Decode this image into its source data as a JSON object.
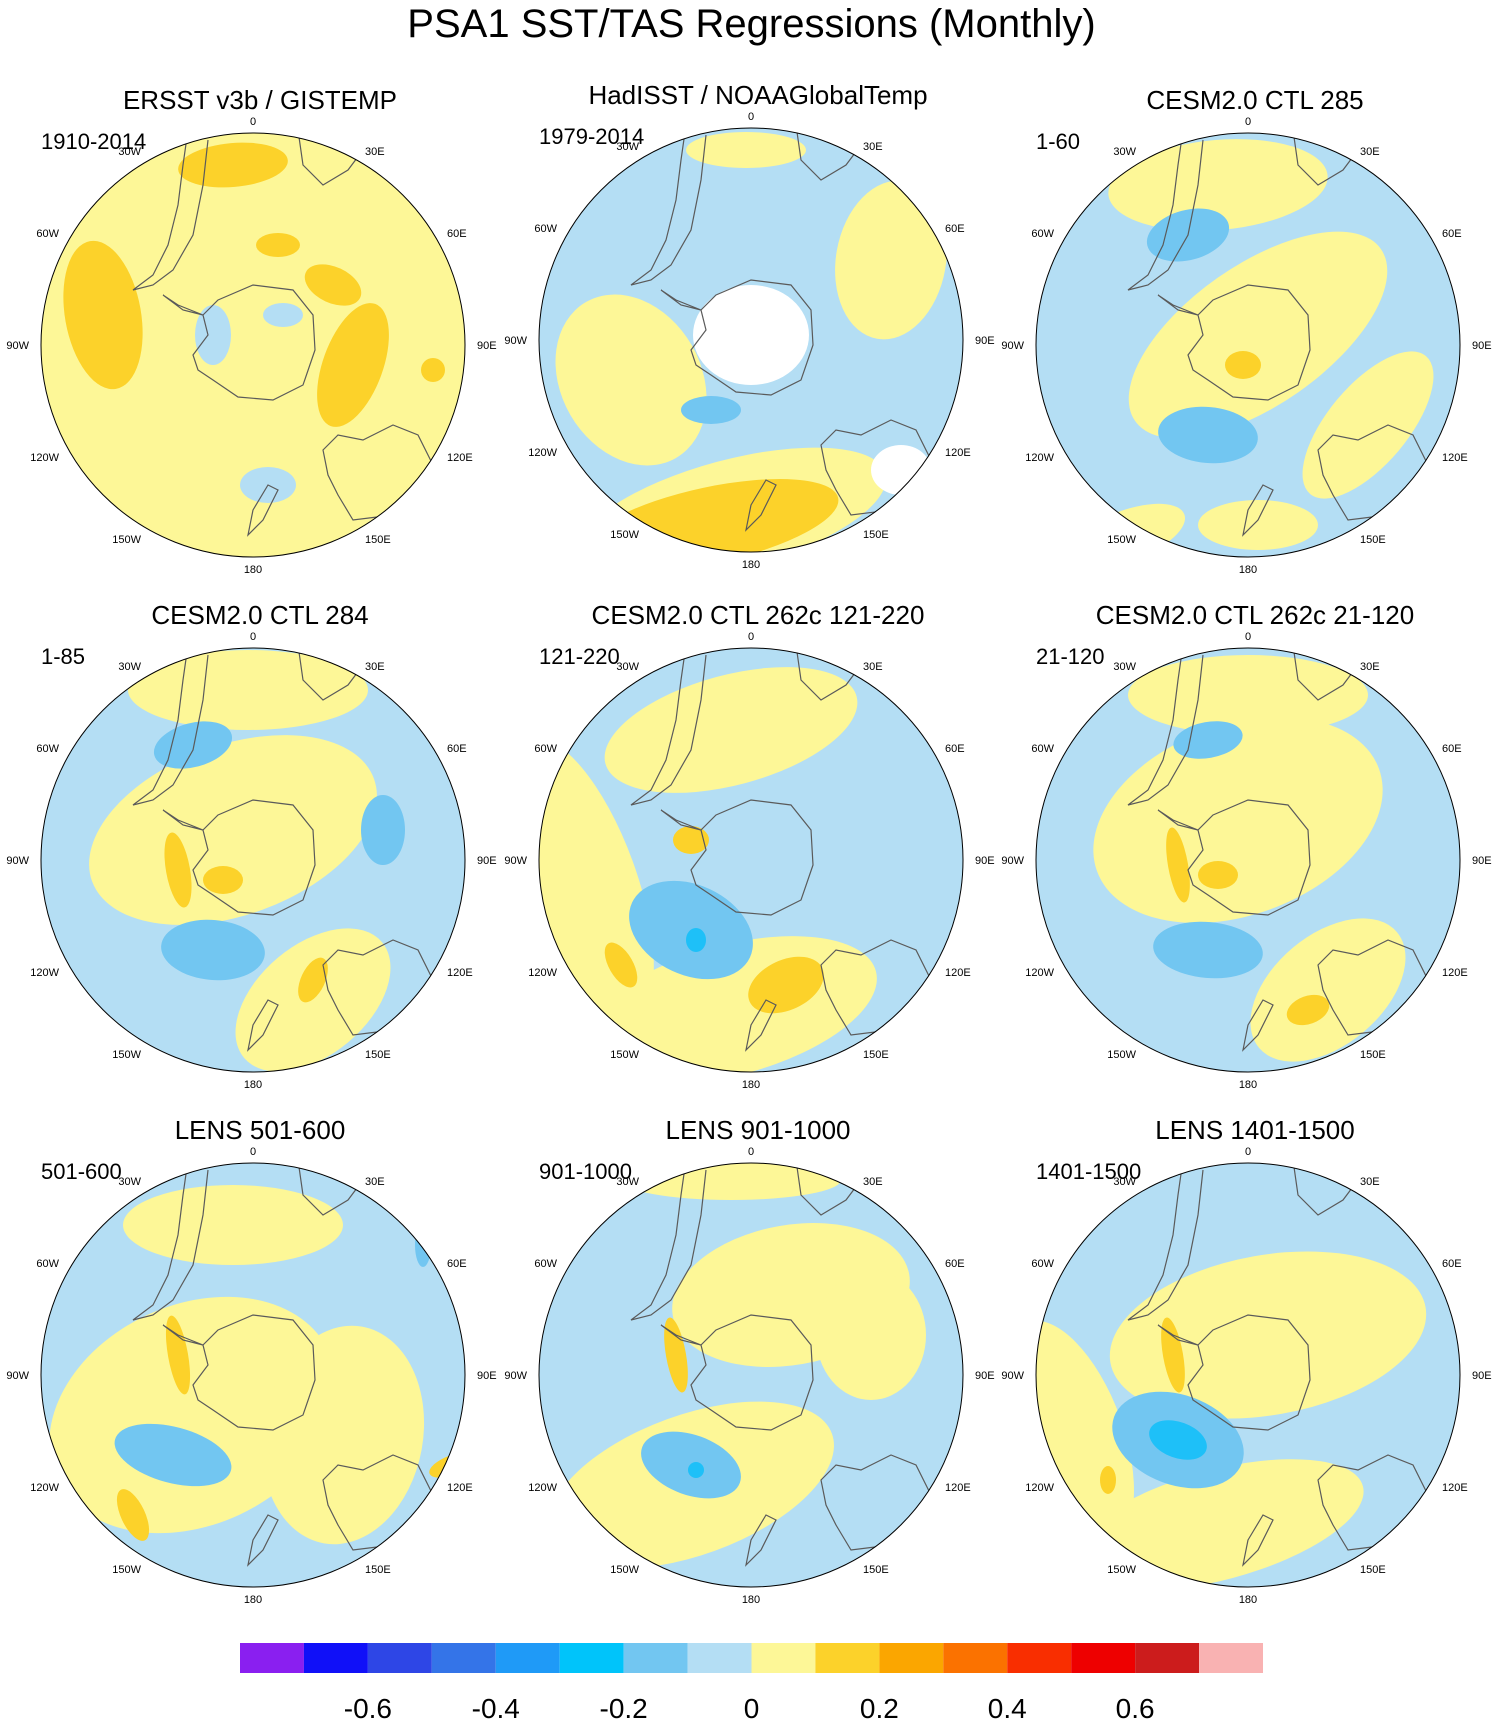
{
  "title": "PSA1 SST/TAS Regressions (Monthly)",
  "colors": {
    "neg_light": "#b4def4",
    "neg_mid": "#72c6f1",
    "neg_strong": "#1ec0f8",
    "pos_light": "#fdf797",
    "pos_mid": "#fcd22a",
    "land_outline": "#5a5a5a",
    "missing": "#ffffff"
  },
  "lon_labels": [
    "0",
    "30E",
    "60E",
    "90E",
    "120E",
    "150E",
    "180",
    "150W",
    "120W",
    "90W",
    "60W",
    "30W"
  ],
  "panels": [
    {
      "title": "ERSST v3b / GISTEMP",
      "period": "1910-2014"
    },
    {
      "title": "HadISST / NOAAGlobalTemp",
      "period": "1979-2014"
    },
    {
      "title": "CESM2.0 CTL 285",
      "period": "1-60"
    },
    {
      "title": "CESM2.0 CTL 284",
      "period": "1-85"
    },
    {
      "title": "CESM2.0 CTL 262c 121-220",
      "period": "121-220"
    },
    {
      "title": "CESM2.0 CTL 262c 21-120",
      "period": "21-120"
    },
    {
      "title": "LENS 501-600",
      "period": "501-600"
    },
    {
      "title": "LENS 901-1000",
      "period": "901-1000"
    },
    {
      "title": "LENS 1401-1500",
      "period": "1401-1500"
    }
  ],
  "colorbar": {
    "colors": [
      "#8a1ff0",
      "#1010f8",
      "#2e46e6",
      "#3474e8",
      "#1f9af7",
      "#00c4fa",
      "#72c6f1",
      "#b4def4",
      "#fdf797",
      "#fcd22a",
      "#fba600",
      "#fb7200",
      "#f92e00",
      "#ee0000",
      "#cc1c1c",
      "#f9b2b2"
    ],
    "ticks": [
      "-0.6",
      "-0.4",
      "-0.2",
      "0",
      "0.2",
      "0.4",
      "0.6"
    ],
    "tick_positions": [
      2,
      4,
      6,
      8,
      10,
      12,
      14
    ]
  }
}
